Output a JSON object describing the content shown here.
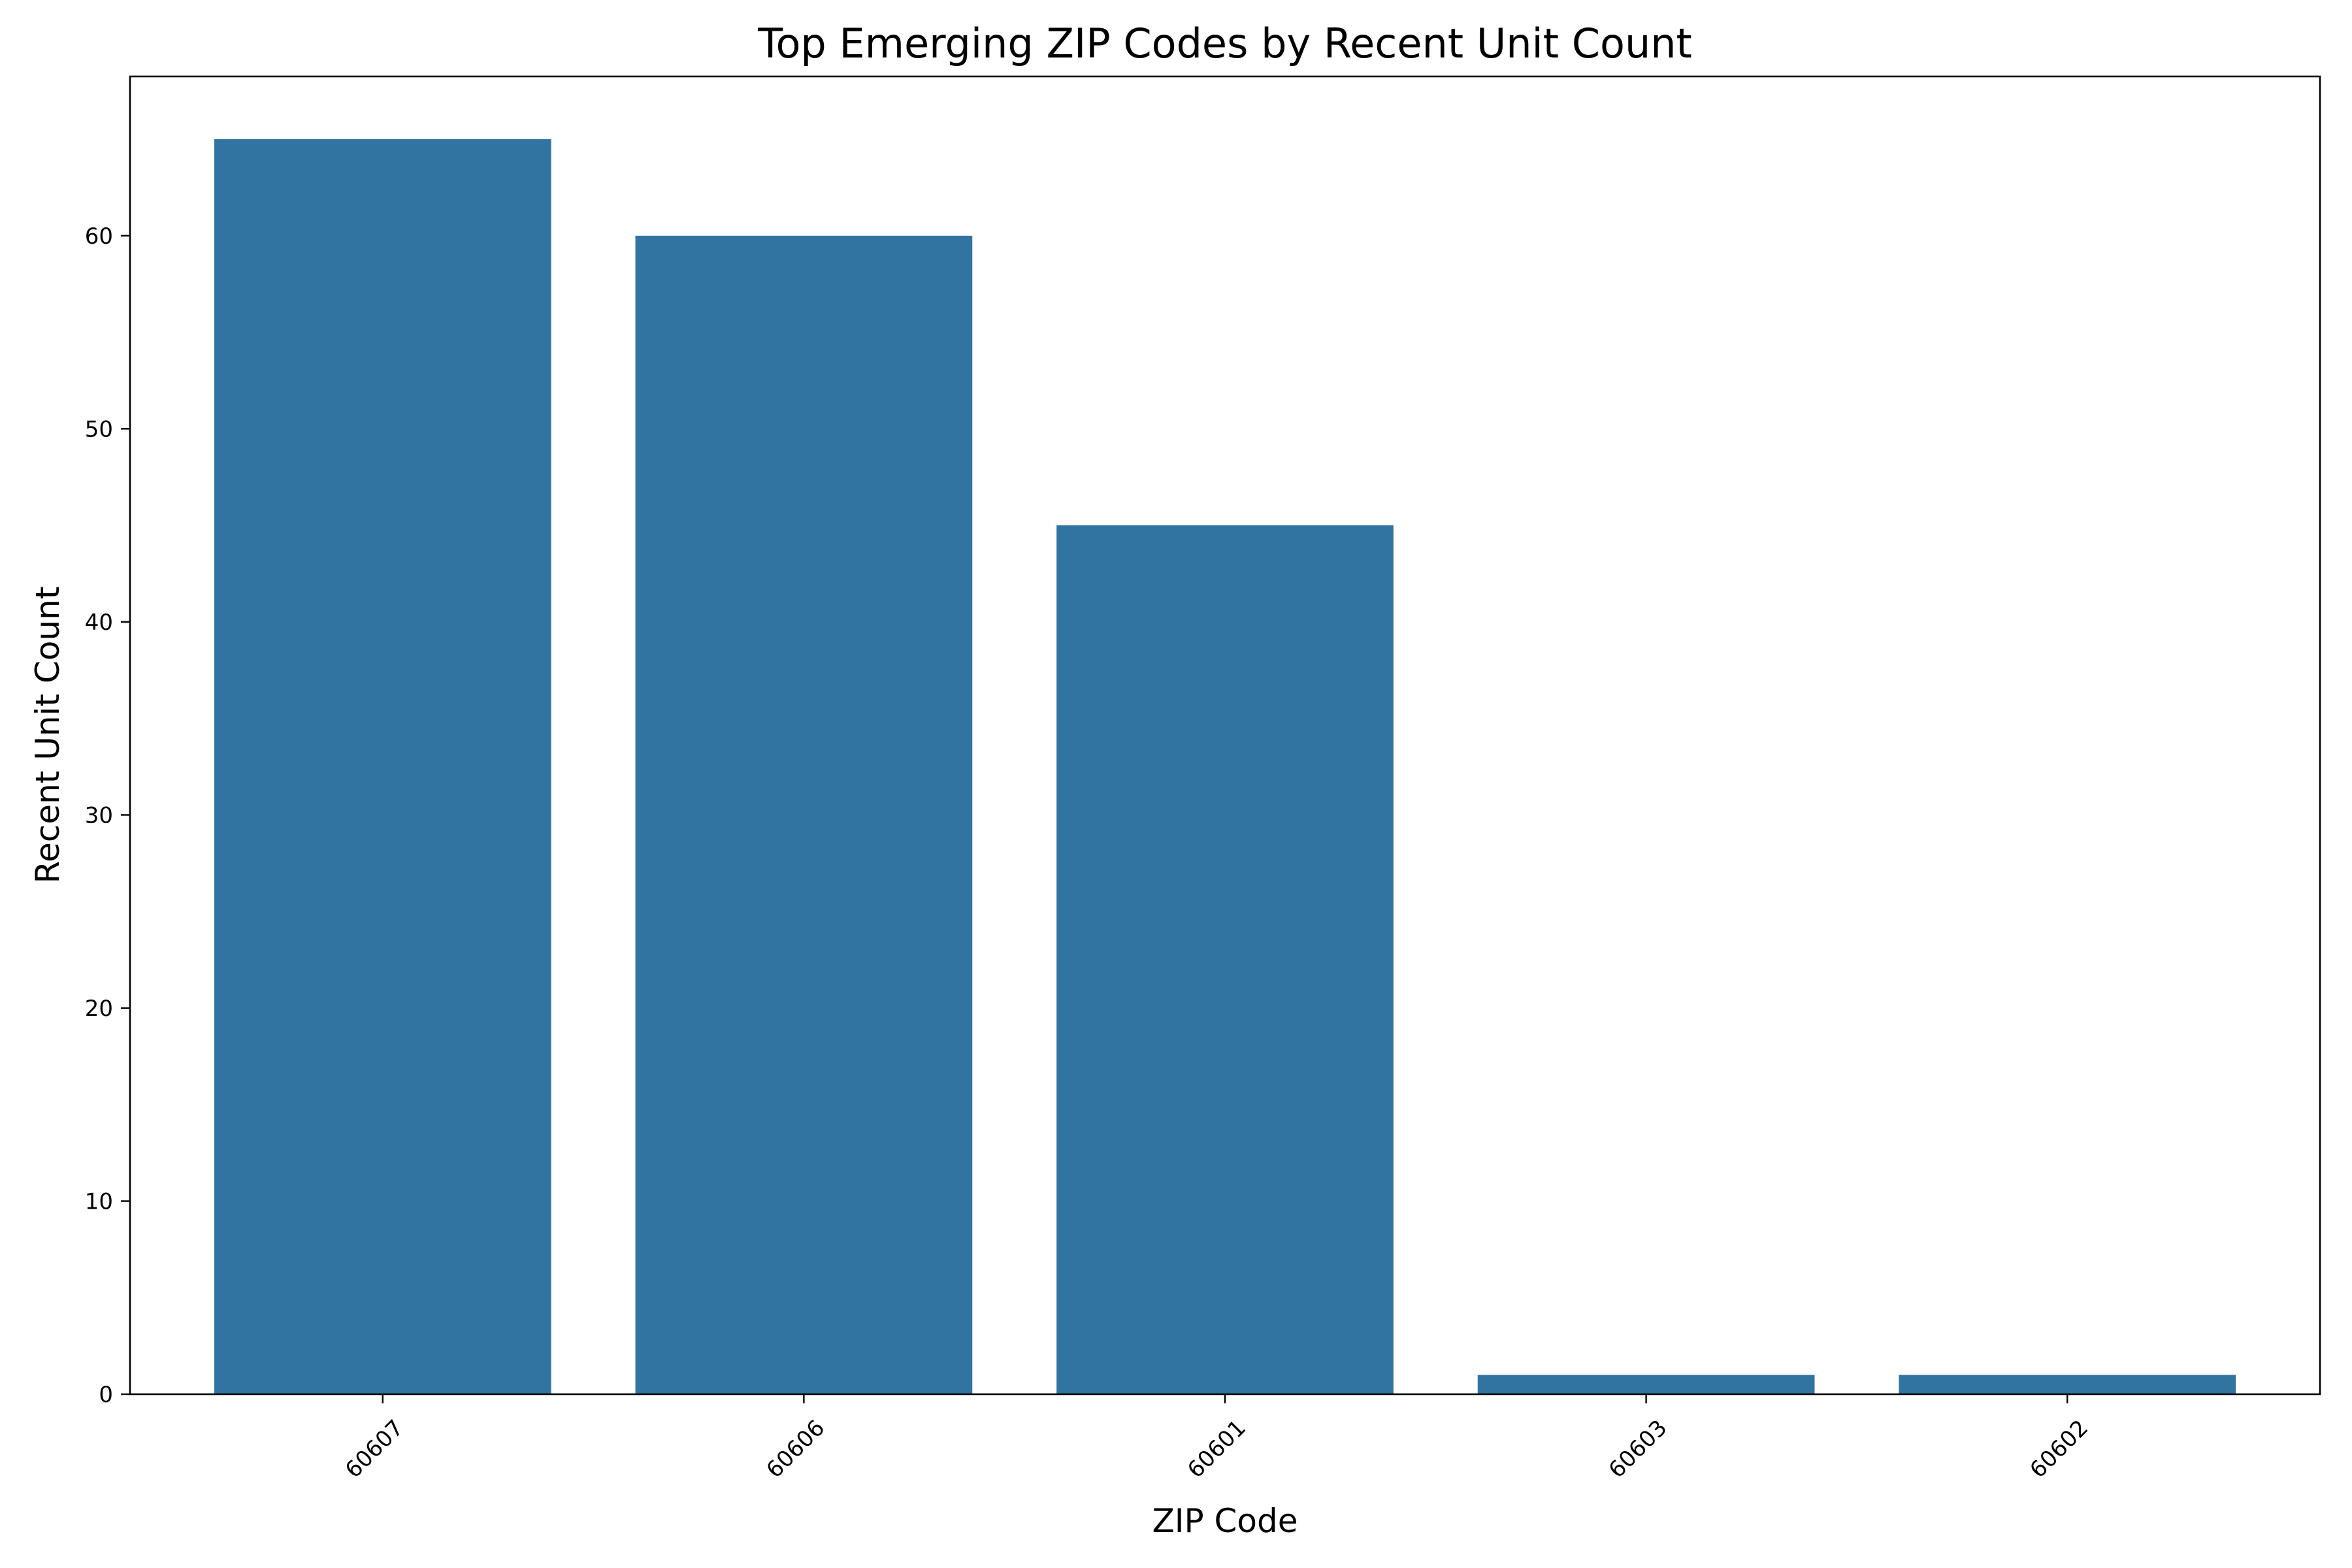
{
  "chart_data": {
    "type": "bar",
    "title": "Top Emerging ZIP Codes by Recent Unit Count",
    "xlabel": "ZIP Code",
    "ylabel": "Recent Unit Count",
    "categories": [
      "60607",
      "60606",
      "60601",
      "60603",
      "60602"
    ],
    "values": [
      65,
      60,
      45,
      1,
      1
    ],
    "ylim": [
      0,
      68.25
    ],
    "yticks": [
      0,
      10,
      20,
      30,
      40,
      50,
      60
    ],
    "bar_color": "#3274a1",
    "grid": false,
    "legend": "none",
    "xtick_rotation": 45
  }
}
